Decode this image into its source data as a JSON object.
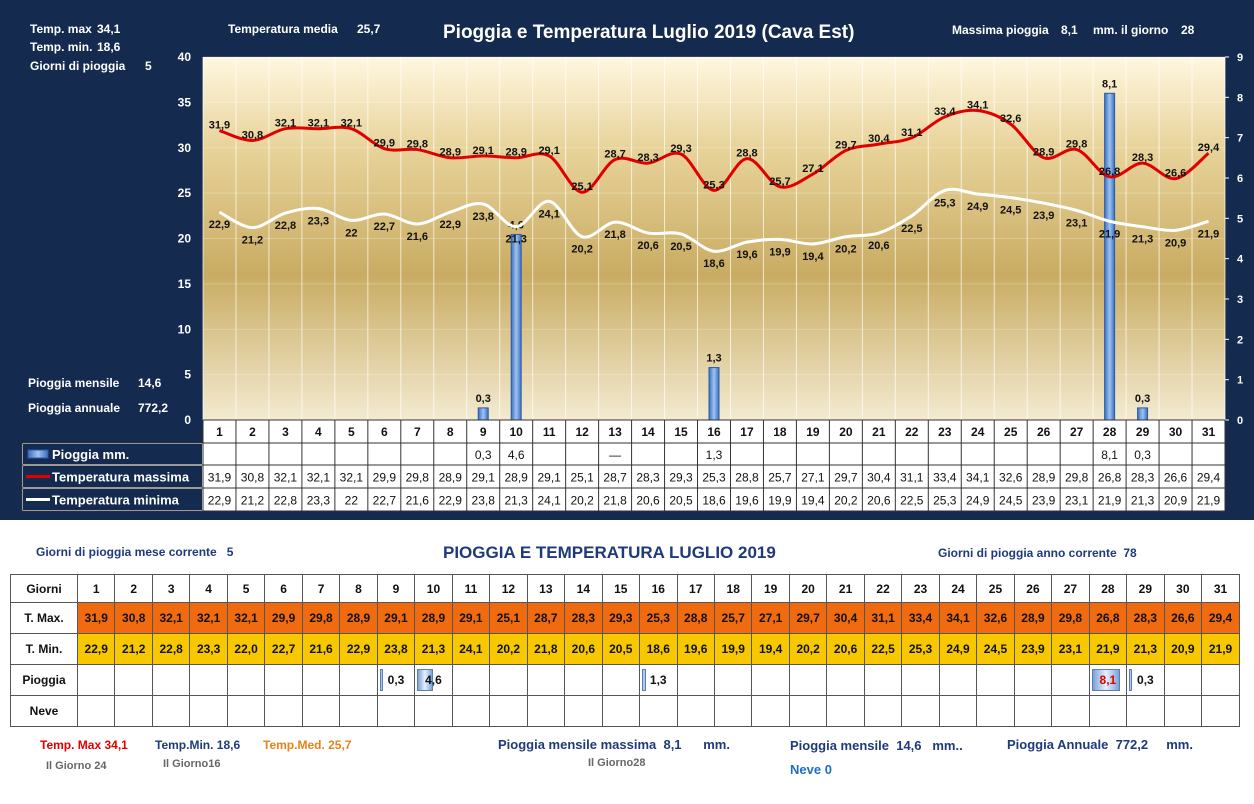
{
  "header": {
    "title": "Pioggia e Temperatura Luglio 2019 (Cava Est)",
    "temp_max_label": "Temp. max",
    "temp_max_value": "34,1",
    "temp_min_label": "Temp.  min.",
    "temp_min_value": "18,6",
    "rain_days_label": "Giorni  di pioggia",
    "rain_days_value": "5",
    "temp_media_label": "Temperatura media",
    "temp_media_value": "25,7",
    "max_rain_label": "Massima pioggia",
    "max_rain_value": "8,1",
    "max_rain_unit": "mm. il giorno",
    "max_rain_day": "28",
    "monthly_rain_label": "Pioggia mensile",
    "monthly_rain_value": "14,6",
    "annual_rain_label": "Pioggia annuale",
    "annual_rain_value": "772,2"
  },
  "chart_data": {
    "type": "line",
    "title": "Pioggia e Temperatura Luglio 2019 (Cava Est)",
    "categories": [
      "1",
      "2",
      "3",
      "4",
      "5",
      "6",
      "7",
      "8",
      "9",
      "10",
      "11",
      "12",
      "13",
      "14",
      "15",
      "16",
      "17",
      "18",
      "19",
      "20",
      "21",
      "22",
      "23",
      "24",
      "25",
      "26",
      "27",
      "28",
      "29",
      "30",
      "31"
    ],
    "series": [
      {
        "name": "Pioggia mm.",
        "type": "bar",
        "axis": "right",
        "values": [
          null,
          null,
          null,
          null,
          null,
          null,
          null,
          null,
          0.3,
          4.6,
          null,
          null,
          null,
          null,
          null,
          1.3,
          null,
          null,
          null,
          null,
          null,
          null,
          null,
          null,
          null,
          null,
          null,
          8.1,
          0.3,
          null,
          null
        ]
      },
      {
        "name": "Temperatura massima",
        "type": "line",
        "axis": "left",
        "values": [
          31.9,
          30.8,
          32.1,
          32.1,
          32.1,
          29.9,
          29.8,
          28.9,
          29.1,
          28.9,
          29.1,
          25.1,
          28.7,
          28.3,
          29.3,
          25.3,
          28.8,
          25.7,
          27.1,
          29.7,
          30.4,
          31.1,
          33.4,
          34.1,
          32.6,
          28.9,
          29.8,
          26.8,
          28.3,
          26.6,
          29.4
        ]
      },
      {
        "name": "Temperatura minima",
        "type": "line",
        "axis": "left",
        "values": [
          22.9,
          21.2,
          22.8,
          23.3,
          22,
          22.7,
          21.6,
          22.9,
          23.8,
          21.3,
          24.1,
          20.2,
          21.8,
          20.6,
          20.5,
          18.6,
          19.6,
          19.9,
          19.4,
          20.2,
          20.6,
          22.5,
          25.3,
          24.9,
          24.5,
          23.9,
          23.1,
          21.9,
          21.3,
          20.9,
          21.9
        ]
      }
    ],
    "ylim_left": [
      0,
      40
    ],
    "yticks_left": [
      0,
      5,
      10,
      15,
      20,
      25,
      30,
      35,
      40
    ],
    "ylim_right": [
      0,
      9
    ],
    "yticks_right": [
      0,
      1,
      2,
      3,
      4,
      5,
      6,
      7,
      8,
      9
    ],
    "colors": {
      "max": "#e00000",
      "min": "#ffffff",
      "rain": "#4f86d6",
      "bg": "#142a4e"
    },
    "grid": true,
    "legend": "table-below",
    "table": {
      "rain_row": [
        "",
        "",
        "",
        "",
        "",
        "",
        "",
        "",
        "0,3",
        "4,6",
        "",
        "",
        "—",
        "",
        "",
        "1,3",
        "",
        "",
        "",
        "",
        "",
        "",
        "",
        "",
        "",
        "",
        "",
        "8,1",
        "0,3",
        "",
        ""
      ],
      "max_row": [
        "31,9",
        "30,8",
        "32,1",
        "32,1",
        "32,1",
        "29,9",
        "29,8",
        "28,9",
        "29,1",
        "28,9",
        "29,1",
        "25,1",
        "28,7",
        "28,3",
        "29,3",
        "25,3",
        "28,8",
        "25,7",
        "27,1",
        "29,7",
        "30,4",
        "31,1",
        "33,4",
        "34,1",
        "32,6",
        "28,9",
        "29,8",
        "26,8",
        "28,3",
        "26,6",
        "29,4"
      ],
      "min_row": [
        "22,9",
        "21,2",
        "22,8",
        "23,3",
        "22",
        "22,7",
        "21,6",
        "22,9",
        "23,8",
        "21,3",
        "24,1",
        "20,2",
        "21,8",
        "20,6",
        "20,5",
        "18,6",
        "19,6",
        "19,9",
        "19,4",
        "20,2",
        "20,6",
        "22,5",
        "25,3",
        "24,9",
        "24,5",
        "23,9",
        "23,1",
        "21,9",
        "21,3",
        "20,9",
        "21,9"
      ]
    }
  },
  "bottom": {
    "title": "PIOGGIA E TEMPERATURA LUGLIO 2019",
    "rain_days_month_label": "Giorni di pioggia",
    "rain_days_month_suffix": "mese corrente",
    "rain_days_month_value": "5",
    "rain_days_year_label": "Giorni di pioggia anno corrente",
    "rain_days_year_value": "78",
    "row_labels": {
      "days": "Giorni",
      "max": "T. Max.",
      "min": "T. Min.",
      "rain": "Pioggia",
      "snow": "Neve"
    },
    "max_values": [
      "31,9",
      "30,8",
      "32,1",
      "32,1",
      "32,1",
      "29,9",
      "29,8",
      "28,9",
      "29,1",
      "28,9",
      "29,1",
      "25,1",
      "28,7",
      "28,3",
      "29,3",
      "25,3",
      "28,8",
      "25,7",
      "27,1",
      "29,7",
      "30,4",
      "31,1",
      "33,4",
      "34,1",
      "32,6",
      "28,9",
      "29,8",
      "26,8",
      "28,3",
      "26,6",
      "29,4"
    ],
    "min_values": [
      "22,9",
      "21,2",
      "22,8",
      "23,3",
      "22,0",
      "22,7",
      "21,6",
      "22,9",
      "23,8",
      "21,3",
      "24,1",
      "20,2",
      "21,8",
      "20,6",
      "20,5",
      "18,6",
      "19,6",
      "19,9",
      "19,4",
      "20,2",
      "20,6",
      "22,5",
      "25,3",
      "24,9",
      "24,5",
      "23,9",
      "23,1",
      "21,9",
      "21,3",
      "20,9",
      "21,9"
    ],
    "rain_values": [
      "",
      "",
      "",
      "",
      "",
      "",
      "",
      "",
      "0,3",
      "4,6",
      "",
      "",
      "",
      "",
      "",
      "1,3",
      "",
      "",
      "",
      "",
      "",
      "",
      "",
      "",
      "",
      "",
      "",
      "8,1",
      "0,3",
      "",
      ""
    ],
    "rain_fraction": [
      0,
      0,
      0,
      0,
      0,
      0,
      0,
      0,
      0.04,
      0.57,
      0,
      0,
      0,
      0,
      0,
      0.16,
      0,
      0,
      0,
      0,
      0,
      0,
      0,
      0,
      0,
      0,
      0,
      1,
      0.04,
      0,
      0
    ],
    "footer": {
      "tmax_label": "Temp. Max",
      "tmax_value": "34,1",
      "tmax_day": "Il Giorno  24",
      "tmin_label": "Temp.Min.",
      "tmin_value": "18,6",
      "tmin_day": "Il Giorno16",
      "tmed_label": "Temp.Med.",
      "tmed_value": "25,7",
      "max_monthly_rain_label": "Pioggia mensile massima",
      "max_monthly_rain_value": "8,1",
      "max_monthly_rain_unit": "mm.",
      "max_monthly_rain_day": "Il Giorno28",
      "monthly_rain_label": "Pioggia mensile",
      "monthly_rain_value": "14,6",
      "monthly_rain_unit": "mm..",
      "annual_rain_label": "Pioggia Annuale",
      "annual_rain_value": "772,2",
      "annual_rain_unit": "mm.",
      "snow_label": "Neve",
      "snow_value": "0"
    },
    "colors": {
      "max_cell": "#f06a10",
      "min_cell": "#f7c800",
      "title": "#1f3a7a",
      "red": "#e00000",
      "orange": "#e8821a",
      "blue": "#1f6fc0"
    }
  }
}
